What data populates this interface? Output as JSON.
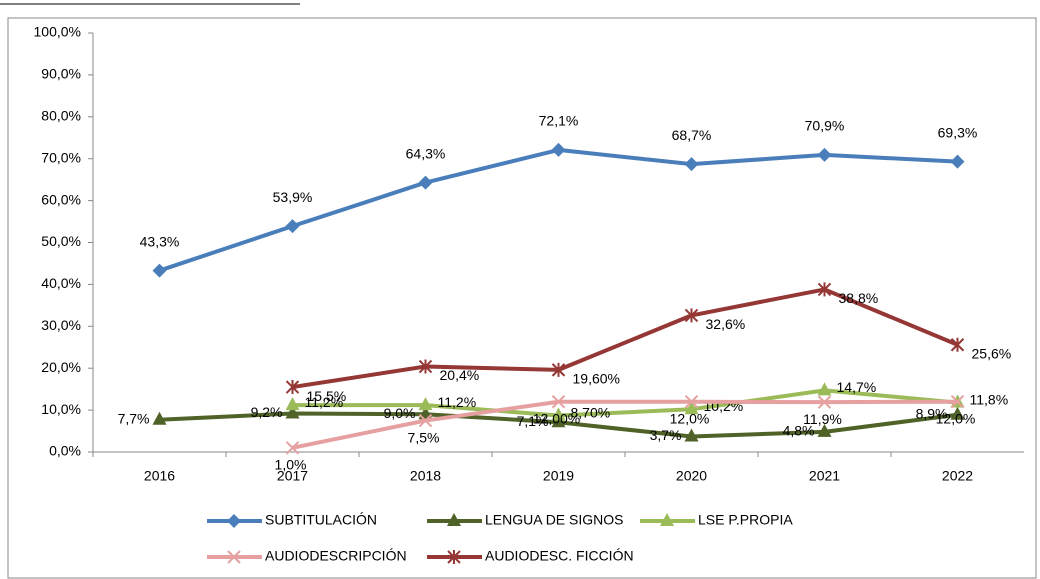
{
  "chart_data": {
    "type": "line",
    "categories": [
      "2016",
      "2017",
      "2018",
      "2019",
      "2020",
      "2021",
      "2022"
    ],
    "ylim": [
      0,
      100
    ],
    "yticks": [
      {
        "value": 0,
        "label": "0,0%"
      },
      {
        "value": 10,
        "label": "10,0%"
      },
      {
        "value": 20,
        "label": "20,0%"
      },
      {
        "value": 30,
        "label": "30,0%"
      },
      {
        "value": 40,
        "label": "40,0%"
      },
      {
        "value": 50,
        "label": "50,0%"
      },
      {
        "value": 60,
        "label": "60,0%"
      },
      {
        "value": 70,
        "label": "70,0%"
      },
      {
        "value": 80,
        "label": "80,0%"
      },
      {
        "value": 90,
        "label": "90,0%"
      },
      {
        "value": 100,
        "label": "100,0%"
      }
    ],
    "series": [
      {
        "name": "SUBTITULACIÓN",
        "color": "#4a7ebb",
        "marker": "diamond",
        "values": [
          43.3,
          53.9,
          64.3,
          72.1,
          68.7,
          70.9,
          69.3
        ],
        "value_labels": [
          "43,3%",
          "53,9%",
          "64,3%",
          "72,1%",
          "68,7%",
          "70,9%",
          "69,3%"
        ]
      },
      {
        "name": "LENGUA DE SIGNOS",
        "color": "#4f6228",
        "marker": "triangle",
        "values": [
          7.7,
          9.2,
          9.0,
          7.1,
          3.7,
          4.8,
          8.9
        ],
        "value_labels": [
          "7,7%",
          "9,2%",
          "9,0%",
          "7,1%",
          "3,7%",
          "4,8%",
          "8,9%"
        ]
      },
      {
        "name": "LSE P.PROPIA",
        "color": "#9bbb59",
        "marker": "triangle",
        "values": [
          null,
          11.2,
          11.2,
          8.7,
          10.2,
          14.7,
          11.8
        ],
        "value_labels": [
          null,
          "11,2%",
          "11,2%",
          "8,70%",
          "10,2%",
          "14,7%",
          "11,8%"
        ]
      },
      {
        "name": "AUDIODESCRIPCIÓN",
        "color": "#e6a0a0",
        "marker": "x",
        "values": [
          null,
          1.0,
          7.5,
          12.0,
          12.0,
          11.9,
          12.0
        ],
        "value_labels": [
          null,
          "1,0%",
          "7,5%",
          "12,00%",
          "12,0%",
          "11,9%",
          "12,0%"
        ]
      },
      {
        "name": "AUDIODESC. FICCIÓN",
        "color": "#953735",
        "marker": "star",
        "values": [
          null,
          15.5,
          20.4,
          19.6,
          32.6,
          38.8,
          25.6
        ],
        "value_labels": [
          null,
          "15,5%",
          "20,4%",
          "19,60%",
          "32,6%",
          "38,8%",
          "25,6%"
        ]
      }
    ]
  }
}
